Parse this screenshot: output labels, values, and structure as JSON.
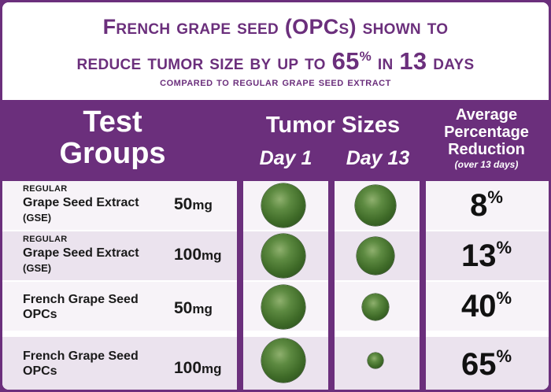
{
  "headline": {
    "line1": "French grape seed (OPCs) shown to",
    "line2_a": "reduce tumor size by up to",
    "line2_num": "65",
    "line2_pct": "%",
    "line2_b": "in",
    "line2_days_num": "13",
    "line2_days": "days",
    "line3": "compared to regular grape seed extract"
  },
  "table": {
    "header": {
      "groups_line1": "Test",
      "groups_line2": "Groups",
      "tumor_sizes": "Tumor Sizes",
      "day1": "Day 1",
      "day13": "Day 13",
      "avg_line1": "Average",
      "avg_line2": "Percentage",
      "avg_line3": "Reduction",
      "avg_note": "(over 13 days)"
    },
    "rows": [
      {
        "prefix": "REGULAR",
        "name1": "Grape Seed Extract",
        "name2": "(GSE)",
        "dose_num": "50",
        "dose_unit": "mg",
        "reduction_num": "8",
        "reduction_pct": "%",
        "day1_size": 1.0,
        "day13_size": 0.92
      },
      {
        "prefix": "REGULAR",
        "name1": "Grape Seed Extract",
        "name2": "(GSE)",
        "dose_num": "100",
        "dose_unit": "mg",
        "reduction_num": "13",
        "reduction_pct": "%",
        "day1_size": 1.0,
        "day13_size": 0.87
      },
      {
        "prefix": "",
        "name1": "French Grape Seed",
        "name2": "OPCs",
        "dose_num": "50",
        "dose_unit": "mg",
        "reduction_num": "40",
        "reduction_pct": "%",
        "day1_size": 1.0,
        "day13_size": 0.6
      },
      {
        "prefix": "",
        "name1": "French Grape Seed",
        "name2": "OPCs",
        "dose_num": "100",
        "dose_unit": "mg",
        "reduction_num": "65",
        "reduction_pct": "%",
        "day1_size": 1.0,
        "day13_size": 0.35
      }
    ]
  },
  "colors": {
    "purple": "#6b2f7c",
    "tumor_green": "#4a7a32",
    "row_light": "#f7f3f8",
    "row_dark": "#ebe3ee"
  }
}
